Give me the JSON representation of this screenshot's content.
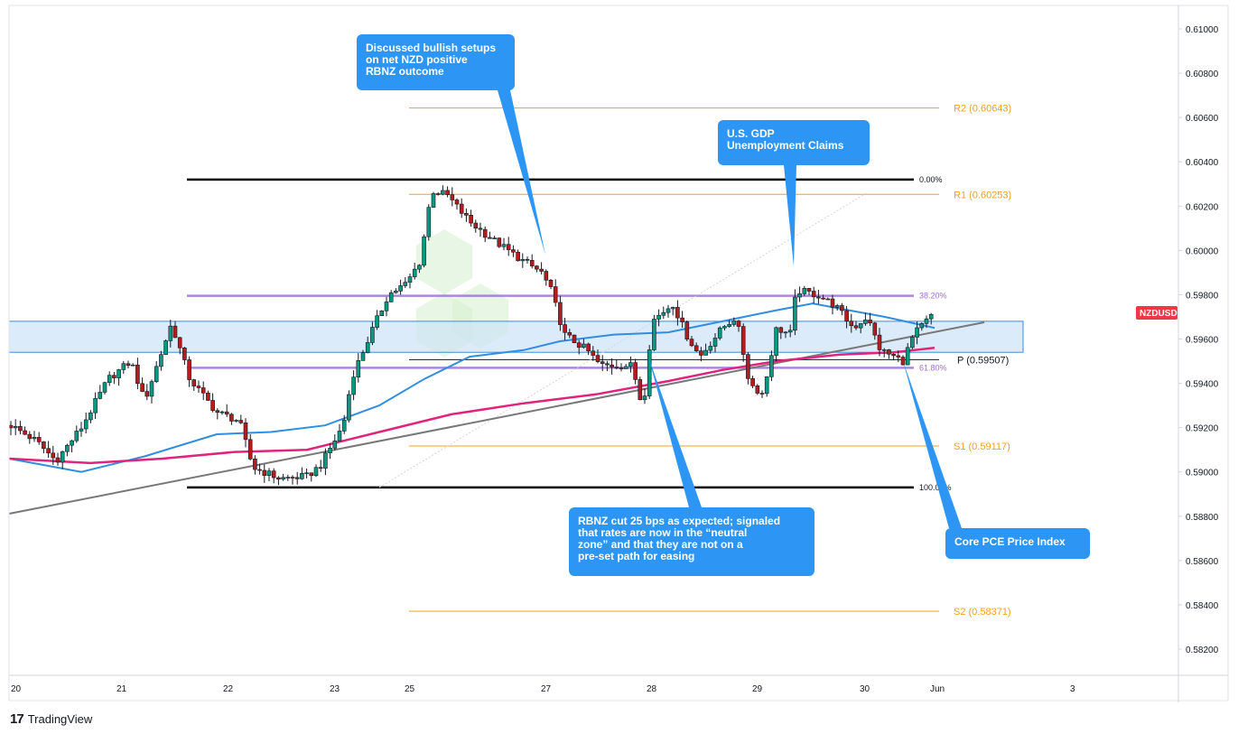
{
  "chart_data": {
    "type": "candlestick",
    "symbol": "NZDUSD",
    "last_price": 0.5972,
    "ylim": [
      0.581,
      0.6115
    ],
    "y_ticks": [
      0.61,
      0.608,
      0.606,
      0.604,
      0.602,
      0.6,
      0.598,
      0.596,
      0.594,
      0.592,
      0.59,
      0.588,
      0.586,
      0.584,
      0.582
    ],
    "x_ticks": [
      "20",
      "21",
      "22",
      "23",
      "25",
      "27",
      "28",
      "29",
      "30",
      "Jun",
      "3"
    ],
    "pivots": [
      {
        "label": "R2 (0.60643)",
        "value": 0.60643
      },
      {
        "label": "R1 (0.60253)",
        "value": 0.60253
      },
      {
        "label": "P (0.59507)",
        "value": 0.59507
      },
      {
        "label": "S1 (0.59117)",
        "value": 0.59117
      },
      {
        "label": "S2 (0.58371)",
        "value": 0.58371
      }
    ],
    "fib_levels": [
      {
        "label": "0.00%",
        "value": 0.6032
      },
      {
        "label": "38.20%",
        "value": 0.59795
      },
      {
        "label": "61.80%",
        "value": 0.5947
      },
      {
        "label": "100.00%",
        "value": 0.5893
      }
    ],
    "range_zone": [
      0.5954,
      0.5968
    ],
    "callouts": [
      {
        "lines": [
          "Discussed bullish setups",
          "on net NZD positive",
          "RBNZ outcome"
        ]
      },
      {
        "lines": [
          "U.S. GDP",
          "Unemployment Claims"
        ]
      },
      {
        "lines": [
          "RBNZ cut 25 bps as expected; signaled",
          "that rates are now in the “neutral",
          "zone” and that they are not on a",
          "pre-set path for easing"
        ]
      },
      {
        "lines": [
          "Core PCE Price Index"
        ]
      }
    ],
    "grid": false,
    "colors": {
      "bull_candle": "#089981",
      "bear_candle": "#b71c1c",
      "ma_fast": "#2f8ee0",
      "ma_slow": "#e0237d",
      "trendline": "#787878",
      "pivot": "#f0a020",
      "fib_mid": "#a070d8",
      "range_zone": "#cde3f7",
      "callout": "#2d95f4",
      "price_badge": "#f23645"
    }
  },
  "branding": {
    "name": "TradingView",
    "logo": "17"
  }
}
